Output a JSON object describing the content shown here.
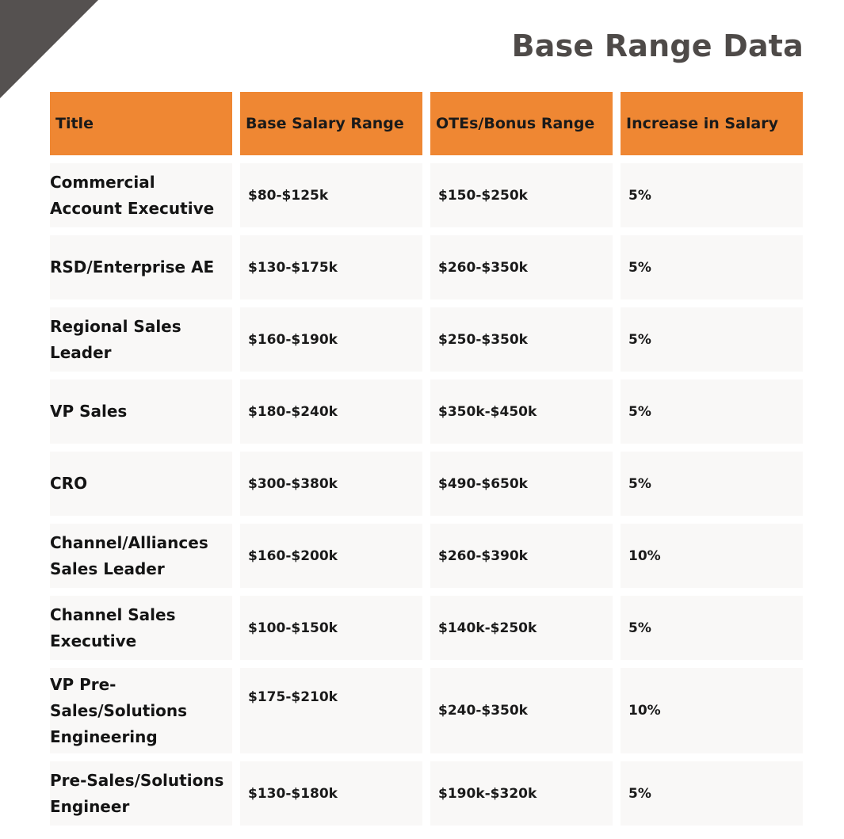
{
  "page_title": "Base Range Data",
  "table": {
    "headers": [
      "Title",
      "Base Salary Range",
      "OTEs/Bonus Range",
      "Increase in Salary"
    ],
    "rows": [
      {
        "title": "Commercial Account Executive",
        "base": "$80-$125k",
        "ote": "$150-$250k",
        "increase": "5%"
      },
      {
        "title": "RSD/Enterprise AE",
        "base": "$130-$175k",
        "ote": "$260-$350k",
        "increase": "5%"
      },
      {
        "title": "Regional Sales Leader",
        "base": "$160-$190k",
        "ote": "$250-$350k",
        "increase": "5%"
      },
      {
        "title": "VP Sales",
        "base": "$180-$240k",
        "ote": "$350k-$450k",
        "increase": "5%"
      },
      {
        "title": "CRO",
        "base": "$300-$380k",
        "ote": "$490-$650k",
        "increase": "5%"
      },
      {
        "title": "Channel/Alliances Sales Leader",
        "base": "$160-$200k",
        "ote": "$260-$390k",
        "increase": "10%"
      },
      {
        "title": "Channel Sales Executive",
        "base": "$100-$150k",
        "ote": "$140k-$250k",
        "increase": "5%"
      },
      {
        "title": "VP Pre-Sales/Solutions Engineering",
        "base": "$175-$210k",
        "ote": "$240-$350k",
        "increase": "10%"
      },
      {
        "title": "Pre-Sales/Solutions Engineer",
        "base": "$130-$180k",
        "ote": "$190k-$320k",
        "increase": "5%"
      }
    ]
  },
  "colors": {
    "header_bg": "#ef8733",
    "row_bg": "#f9f8f7",
    "title_text": "#4e4a48",
    "corner": "#555150"
  }
}
